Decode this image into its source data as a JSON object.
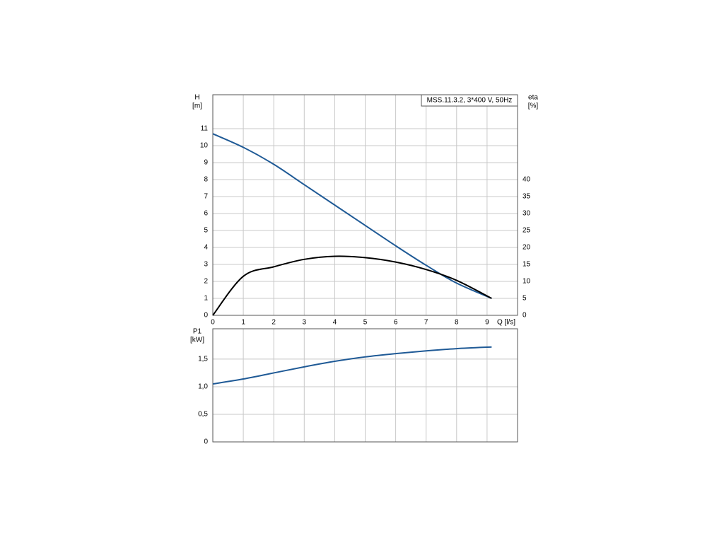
{
  "chart_data": [
    {
      "type": "line",
      "title": "MSS.11.3.2, 3*400 V, 50Hz",
      "ylabel": "H",
      "yunit": "[m]",
      "y2label": "eta",
      "y2unit": "[%]",
      "xlabel": "Q [l/s]",
      "x": [
        0,
        1,
        2,
        3,
        4,
        5,
        6,
        7,
        8,
        9.15
      ],
      "series": [
        {
          "color": "#1f5a96",
          "values": [
            10.7,
            9.9,
            8.9,
            7.7,
            6.5,
            5.3,
            4.1,
            2.95,
            1.9,
            1.0
          ]
        },
        {
          "color": "#000000",
          "axis": "y2",
          "values": [
            0,
            11.5,
            14.3,
            16.5,
            17.4,
            17,
            15.7,
            13.5,
            10.3,
            5
          ]
        }
      ],
      "xlim": [
        0,
        10
      ],
      "xticks": [
        0,
        1,
        2,
        3,
        4,
        5,
        6,
        7,
        8,
        9
      ],
      "ylim": [
        0,
        13
      ],
      "yticks": [
        0,
        1,
        2,
        3,
        4,
        5,
        6,
        7,
        8,
        9,
        10,
        11
      ],
      "y2lim": [
        0,
        65
      ],
      "y2ticks": [
        0,
        5,
        10,
        15,
        20,
        25,
        30,
        35,
        40
      ],
      "grid": true
    },
    {
      "type": "line",
      "ylabel": "P1",
      "yunit": "[kW]",
      "x": [
        0,
        1,
        2,
        3,
        4,
        5,
        6,
        7,
        8,
        9.15
      ],
      "series": [
        {
          "color": "#1f5a96",
          "values": [
            1.05,
            1.14,
            1.25,
            1.36,
            1.46,
            1.54,
            1.6,
            1.65,
            1.69,
            1.72
          ]
        }
      ],
      "xlim": [
        0,
        10
      ],
      "xticks": [
        0,
        1,
        2,
        3,
        4,
        5,
        6,
        7,
        8,
        9
      ],
      "xtick_labels": false,
      "ylim": [
        0,
        2.05
      ],
      "yticks": [
        0,
        {
          "value": 0.5,
          "label": "0,5"
        },
        {
          "value": 1.0,
          "label": "1,0"
        },
        {
          "value": 1.5,
          "label": "1,5"
        }
      ],
      "grid": true
    }
  ]
}
